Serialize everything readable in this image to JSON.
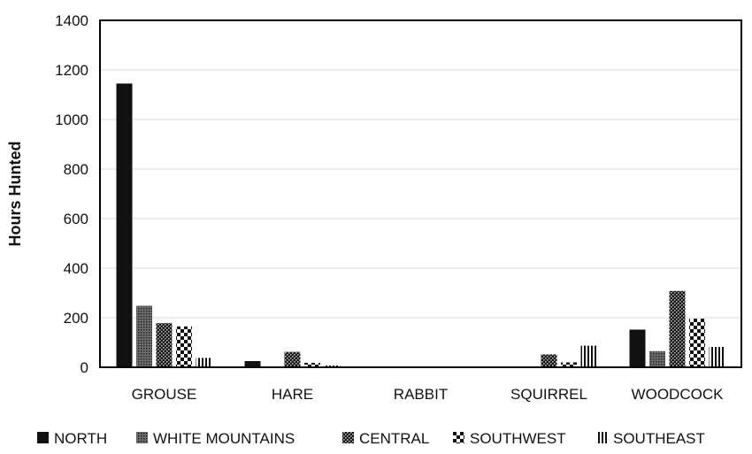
{
  "chart_data": {
    "type": "bar",
    "title": "",
    "xlabel": "",
    "ylabel": "Hours Hunted",
    "ylim": [
      0,
      1400
    ],
    "yticks": [
      0,
      200,
      400,
      600,
      800,
      1000,
      1200,
      1400
    ],
    "grid": true,
    "legend_position": "bottom",
    "categories": [
      "GROUSE",
      "HARE",
      "RABBIT",
      "SQUIRREL",
      "WOODCOCK"
    ],
    "series": [
      {
        "name": "NORTH",
        "values": [
          1145,
          25,
          0,
          0,
          152
        ],
        "pattern": "solid"
      },
      {
        "name": "WHITE MOUNTAINS",
        "values": [
          248,
          0,
          0,
          0,
          65
        ],
        "pattern": "fine-dots"
      },
      {
        "name": "CENTRAL",
        "values": [
          178,
          62,
          0,
          52,
          308
        ],
        "pattern": "checker"
      },
      {
        "name": "SOUTHWEST",
        "values": [
          165,
          18,
          0,
          20,
          196
        ],
        "pattern": "large-check"
      },
      {
        "name": "SOUTHEAST",
        "values": [
          38,
          7,
          0,
          87,
          82
        ],
        "pattern": "vertical-lines"
      }
    ]
  }
}
